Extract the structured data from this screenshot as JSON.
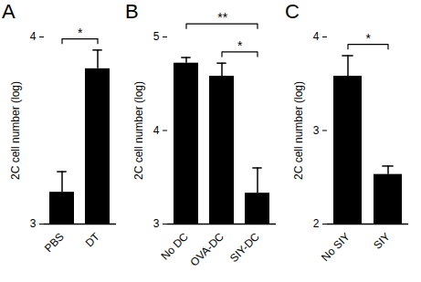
{
  "chart_data": [
    {
      "type": "bar",
      "title": "A",
      "y_label": "2C cell number (log)",
      "categories": [
        "PBS",
        "DT"
      ],
      "values": [
        3.17,
        3.83
      ],
      "errors": [
        0.11,
        0.1
      ],
      "color": "#000000",
      "ylim": [
        3,
        4
      ],
      "yticks": [
        3,
        4
      ],
      "annotations": [
        {
          "from": "PBS",
          "to": "DT",
          "text": "*"
        }
      ]
    },
    {
      "type": "bar",
      "title": "B",
      "y_label": "2C cell number (log)",
      "categories": [
        "No DC",
        "OVA-DC",
        "SIY-DC"
      ],
      "values": [
        4.72,
        4.58,
        3.33
      ],
      "errors": [
        0.06,
        0.14,
        0.27
      ],
      "color": "#000000",
      "ylim": [
        3,
        5
      ],
      "yticks": [
        3,
        4,
        5
      ],
      "annotations": [
        {
          "from": "No DC",
          "to": "SIY-DC",
          "text": "**"
        },
        {
          "from": "OVA-DC",
          "to": "SIY-DC",
          "text": "*"
        }
      ]
    },
    {
      "type": "bar",
      "title": "C",
      "y_label": "2C cell number (log)",
      "categories": [
        "No SIY",
        "SIY"
      ],
      "values": [
        3.58,
        2.53
      ],
      "errors": [
        0.22,
        0.09
      ],
      "color": "#000000",
      "ylim": [
        2,
        4
      ],
      "yticks": [
        2,
        3,
        4
      ],
      "annotations": [
        {
          "from": "No SIY",
          "to": "SIY",
          "text": "*"
        }
      ]
    }
  ]
}
